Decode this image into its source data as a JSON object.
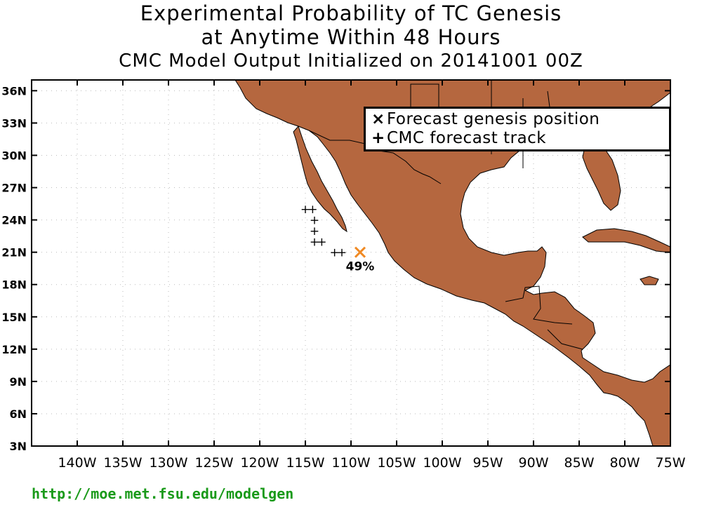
{
  "title": {
    "line1": "Experimental Probability of TC Genesis",
    "line2": "at Anytime Within 48 Hours",
    "line3": "CMC Model Output Initialized on 20141001 00Z"
  },
  "map": {
    "lon_range": [
      -145,
      -75
    ],
    "lat_range": [
      3,
      37
    ],
    "land_color": "#b5673f",
    "grid": "dotted",
    "lat_ticks": [
      "3N",
      "6N",
      "9N",
      "12N",
      "15N",
      "18N",
      "21N",
      "24N",
      "27N",
      "30N",
      "33N",
      "36N"
    ],
    "lat_values": [
      3,
      6,
      9,
      12,
      15,
      18,
      21,
      24,
      27,
      30,
      33,
      36
    ],
    "lon_ticks": [
      "140W",
      "135W",
      "130W",
      "125W",
      "120W",
      "115W",
      "110W",
      "105W",
      "100W",
      "95W",
      "90W",
      "85W",
      "80W",
      "75W"
    ],
    "lon_values": [
      -140,
      -135,
      -130,
      -125,
      -120,
      -115,
      -110,
      -105,
      -100,
      -95,
      -90,
      -85,
      -80,
      -75
    ]
  },
  "legend": {
    "genesis_symbol": "×",
    "genesis_label": "Forecast genesis position",
    "track_symbol": "+",
    "track_label": "CMC forecast track"
  },
  "genesis": {
    "lon": -109.0,
    "lat": 21.0,
    "label": "49%",
    "color": "#f08a24"
  },
  "track": [
    {
      "lon": -115.0,
      "lat": 25.0
    },
    {
      "lon": -114.2,
      "lat": 25.0
    },
    {
      "lon": -114.0,
      "lat": 24.0
    },
    {
      "lon": -114.0,
      "lat": 23.0
    },
    {
      "lon": -114.0,
      "lat": 22.0
    },
    {
      "lon": -113.2,
      "lat": 22.0
    },
    {
      "lon": -111.8,
      "lat": 21.0
    },
    {
      "lon": -111.0,
      "lat": 21.0
    }
  ],
  "footer": {
    "url": "http://moe.met.fsu.edu/modelgen"
  }
}
